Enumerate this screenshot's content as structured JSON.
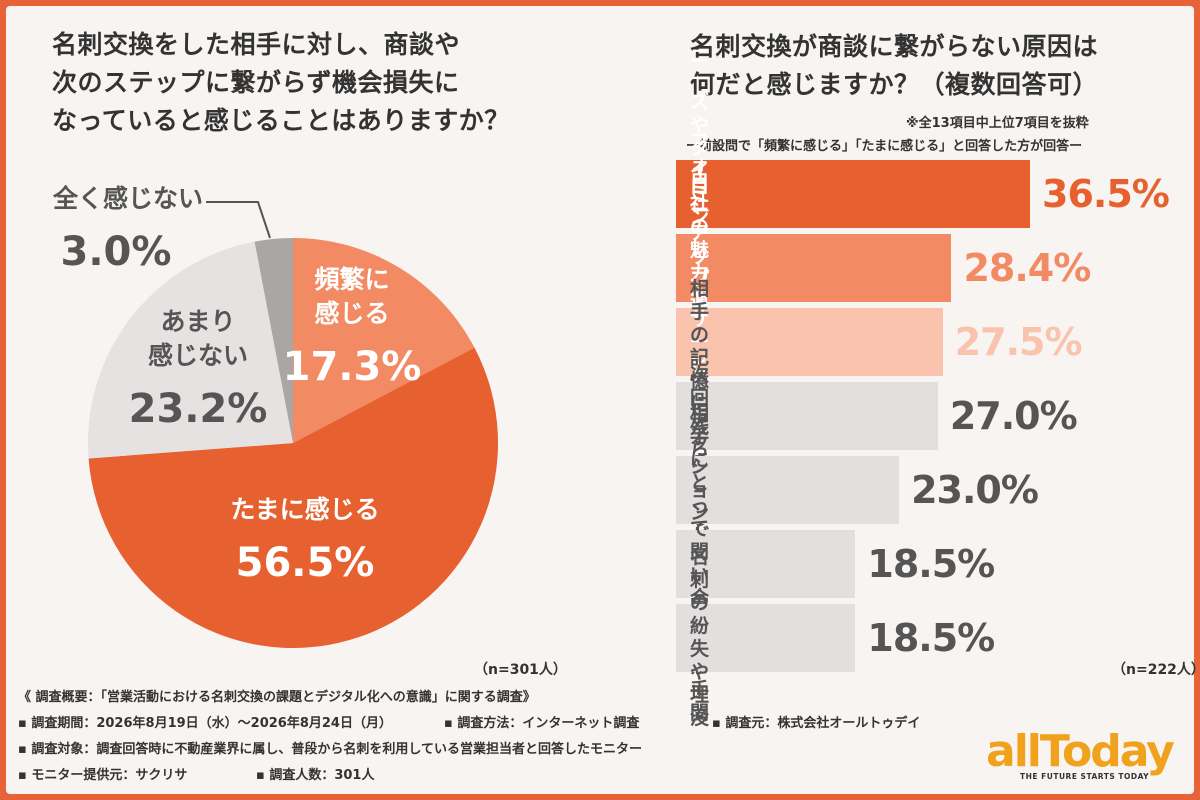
{
  "left": {
    "title": "名刺交換をした相手に対し、商談や\n次のステップに繋がらず機会損失に\nなっていると感じることはありますか？",
    "n": "（n=301人）"
  },
  "right": {
    "title": "名刺交換が商談に繋がらない原因は\n何だと感じますか？（複数回答可）",
    "note1": "※全13項目中上位7項目を抜粋",
    "note2": "ー前設問で「頻繁に感じる」「たまに感じる」と回答した方が回答ー",
    "n": "（n=222人）"
  },
  "footer": {
    "line1": "《 調査概要：「営業活動における名刺交換の課題とデジタル化への意識」に関する調査》",
    "period": "▪ 調査期間：2026年8月19日（水）〜2026年8月24日（月）",
    "method": "▪ 調査方法：インターネット調査",
    "org": "▪ 調査元：株式会社オールトゥデイ",
    "target": "▪ 調査対象：調査回答時に不動産業界に属し、普段から名刺を利用している営業担当者と回答したモニター",
    "provider": "▪ モニター提供元：サクリサ",
    "count": "▪ 調査人数：301人"
  },
  "logo": {
    "name": "allToday",
    "tagline": "THE FUTURE STARTS TODAY"
  },
  "chart_data": [
    {
      "type": "pie",
      "title": "名刺交換をした相手に対し、商談や次のステップに繋がらず機会損失になっていると感じることはありますか？",
      "slices": [
        {
          "label": "頻繁に\n感じる",
          "value": 17.3,
          "display": "17.3%",
          "color": "#f28a64",
          "text_color": "#ffffff"
        },
        {
          "label": "たまに感じる",
          "value": 56.5,
          "display": "56.5%",
          "color": "#e6612f",
          "text_color": "#ffffff"
        },
        {
          "label": "あまり\n感じない",
          "value": 23.2,
          "display": "23.2%",
          "color": "#e6e2e1",
          "text_color": "#555555"
        },
        {
          "label": "全く感じない",
          "value": 3.0,
          "display": "3.0%",
          "color": "#a9a6a6",
          "text_color": "#555555"
        }
      ]
    },
    {
      "type": "bar",
      "orientation": "horizontal",
      "title": "名刺交換が商談に繋がらない原因は何だと感じますか？（複数回答可）",
      "categories": [
        "ニーズやタイミングの不一致",
        "フォローアップ連絡の遅れ",
        "自社の魅力や\nサービスの伝達不足",
        "相手の記憶に残らなかった",
        "次回アクションが未確定",
        "相手にとって\n問い合わせが手間",
        "名刺の紛失や埋没"
      ],
      "values": [
        36.5,
        28.4,
        27.5,
        27.0,
        23.0,
        18.5,
        18.5
      ],
      "value_labels": [
        "36.5%",
        "28.4%",
        "27.5%",
        "27.0%",
        "23.0%",
        "18.5%",
        "18.5%"
      ],
      "colors": [
        "#e6612f",
        "#f28a64",
        "#f9c3ad",
        "#e2dfde",
        "#e2dfde",
        "#e2dfde",
        "#e2dfde"
      ],
      "label_colors": [
        "#ffffff",
        "#ffffff",
        "#ffffff",
        "#555555",
        "#555555",
        "#555555",
        "#555555"
      ],
      "value_colors": [
        "#e6612f",
        "#f28a64",
        "#f9c3ad",
        "#555555",
        "#555555",
        "#555555",
        "#555555"
      ]
    }
  ]
}
